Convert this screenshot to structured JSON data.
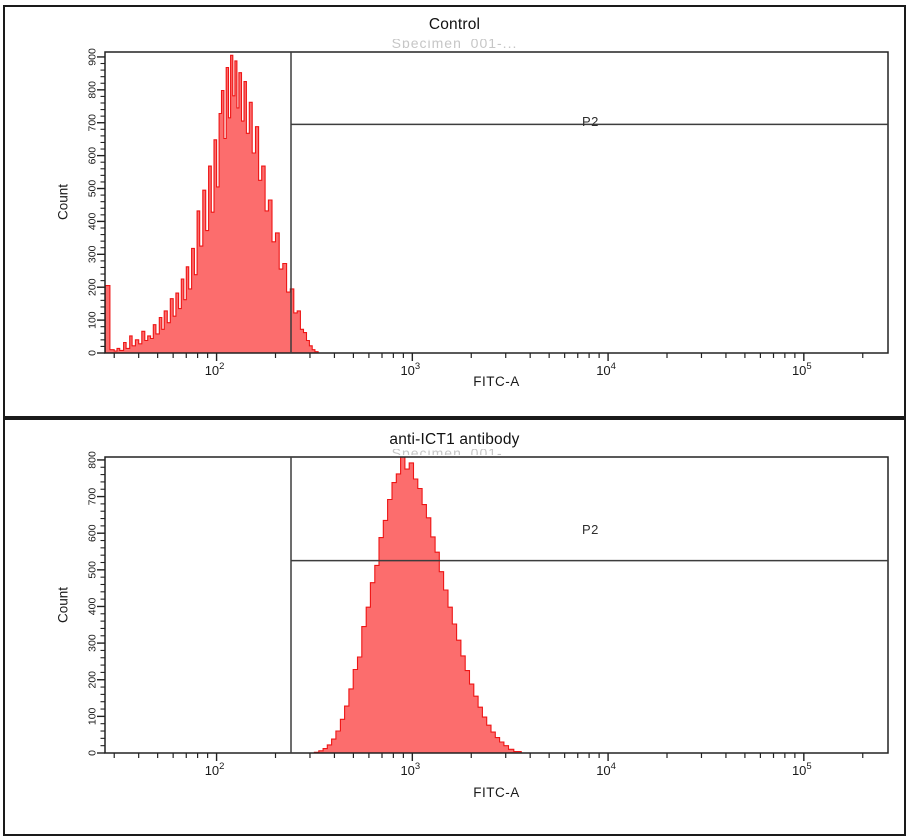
{
  "colors": {
    "hist_fill": "#fc6d6d",
    "hist_stroke": "#ee1515",
    "gate": "#3d3d3d",
    "axis": "#222222",
    "text": "#1a1a1a",
    "watermark": "#c6c6c6"
  },
  "chart_data": [
    {
      "type": "histogram",
      "title": "Control",
      "subtitle_fragment": "Specimen_001-...",
      "x_axis": {
        "label": "FITC-A",
        "scale": "log",
        "log_min": 1.43,
        "log_max": 5.43,
        "tick_exponents": [
          2,
          3,
          4,
          5
        ]
      },
      "y_axis": {
        "label": "Count",
        "min": 0,
        "max": 915,
        "tick_max": 900,
        "tick_step": 100,
        "minor_step": 20
      },
      "gate": {
        "label": "P2",
        "x_value": 240,
        "y_count": 695
      },
      "series": {
        "name": "events",
        "points": [
          [
            27,
            0
          ],
          [
            27,
            205
          ],
          [
            28.5,
            205
          ],
          [
            28.5,
            10
          ],
          [
            30,
            6
          ],
          [
            31,
            14
          ],
          [
            32,
            8
          ],
          [
            33.5,
            32
          ],
          [
            34.5,
            14
          ],
          [
            36,
            52
          ],
          [
            37,
            22
          ],
          [
            38.5,
            40
          ],
          [
            40,
            28
          ],
          [
            41.5,
            66
          ],
          [
            43,
            38
          ],
          [
            44.5,
            52
          ],
          [
            46,
            44
          ],
          [
            47.5,
            86
          ],
          [
            49,
            58
          ],
          [
            51,
            108
          ],
          [
            52.5,
            72
          ],
          [
            54,
            128
          ],
          [
            56,
            92
          ],
          [
            58,
            165
          ],
          [
            60,
            112
          ],
          [
            62,
            182
          ],
          [
            64,
            135
          ],
          [
            66,
            225
          ],
          [
            68,
            162
          ],
          [
            70,
            262
          ],
          [
            72,
            195
          ],
          [
            74.5,
            318
          ],
          [
            77,
            238
          ],
          [
            79.5,
            432
          ],
          [
            82,
            325
          ],
          [
            85,
            495
          ],
          [
            88,
            372
          ],
          [
            91,
            568
          ],
          [
            94,
            428
          ],
          [
            97,
            648
          ],
          [
            100,
            505
          ],
          [
            103,
            728
          ],
          [
            106,
            798
          ],
          [
            109,
            652
          ],
          [
            112,
            868
          ],
          [
            115,
            715
          ],
          [
            118,
            905
          ],
          [
            121,
            782
          ],
          [
            124,
            888
          ],
          [
            127,
            745
          ],
          [
            130,
            852
          ],
          [
            134,
            705
          ],
          [
            138,
            825
          ],
          [
            142,
            668
          ],
          [
            147,
            762
          ],
          [
            152,
            608
          ],
          [
            158,
            688
          ],
          [
            164,
            525
          ],
          [
            170,
            568
          ],
          [
            177,
            432
          ],
          [
            184,
            465
          ],
          [
            192,
            338
          ],
          [
            200,
            365
          ],
          [
            209,
            255
          ],
          [
            218,
            272
          ],
          [
            228,
            185
          ],
          [
            238,
            195
          ],
          [
            248,
            122
          ],
          [
            258,
            128
          ],
          [
            268,
            72
          ],
          [
            278,
            62
          ],
          [
            288,
            38
          ],
          [
            298,
            22
          ],
          [
            308,
            10
          ],
          [
            318,
            4
          ],
          [
            330,
            0
          ]
        ]
      }
    },
    {
      "type": "histogram",
      "title": "anti-ICT1 antibody",
      "subtitle_fragment": "Specimen_001-...",
      "x_axis": {
        "label": "FITC-A",
        "scale": "log",
        "log_min": 1.43,
        "log_max": 5.43,
        "tick_exponents": [
          2,
          3,
          4,
          5
        ]
      },
      "y_axis": {
        "label": "Count",
        "min": 0,
        "max": 808,
        "tick_max": 800,
        "tick_step": 100,
        "minor_step": 20
      },
      "gate": {
        "label": "P2",
        "x_value": 240,
        "y_count": 525
      },
      "series": {
        "name": "events",
        "points": [
          [
            316,
            2
          ],
          [
            333,
            6
          ],
          [
            350,
            12
          ],
          [
            368,
            22
          ],
          [
            387,
            38
          ],
          [
            407,
            60
          ],
          [
            429,
            92
          ],
          [
            451,
            128
          ],
          [
            474,
            175
          ],
          [
            499,
            228
          ],
          [
            525,
            262
          ],
          [
            552,
            345
          ],
          [
            581,
            398
          ],
          [
            611,
            465
          ],
          [
            643,
            512
          ],
          [
            676,
            588
          ],
          [
            711,
            635
          ],
          [
            748,
            692
          ],
          [
            787,
            738
          ],
          [
            828,
            762
          ],
          [
            871,
            808
          ],
          [
            916,
            775
          ],
          [
            964,
            792
          ],
          [
            1014,
            748
          ],
          [
            1067,
            722
          ],
          [
            1122,
            678
          ],
          [
            1180,
            642
          ],
          [
            1242,
            590
          ],
          [
            1307,
            548
          ],
          [
            1374,
            495
          ],
          [
            1445,
            445
          ],
          [
            1521,
            398
          ],
          [
            1600,
            352
          ],
          [
            1683,
            308
          ],
          [
            1770,
            265
          ],
          [
            1862,
            225
          ],
          [
            1959,
            188
          ],
          [
            2061,
            155
          ],
          [
            2168,
            125
          ],
          [
            2280,
            98
          ],
          [
            2399,
            76
          ],
          [
            2523,
            57
          ],
          [
            2655,
            42
          ],
          [
            2793,
            30
          ],
          [
            2938,
            20
          ],
          [
            3100,
            10
          ],
          [
            3300,
            4
          ],
          [
            3600,
            0
          ]
        ]
      }
    }
  ]
}
